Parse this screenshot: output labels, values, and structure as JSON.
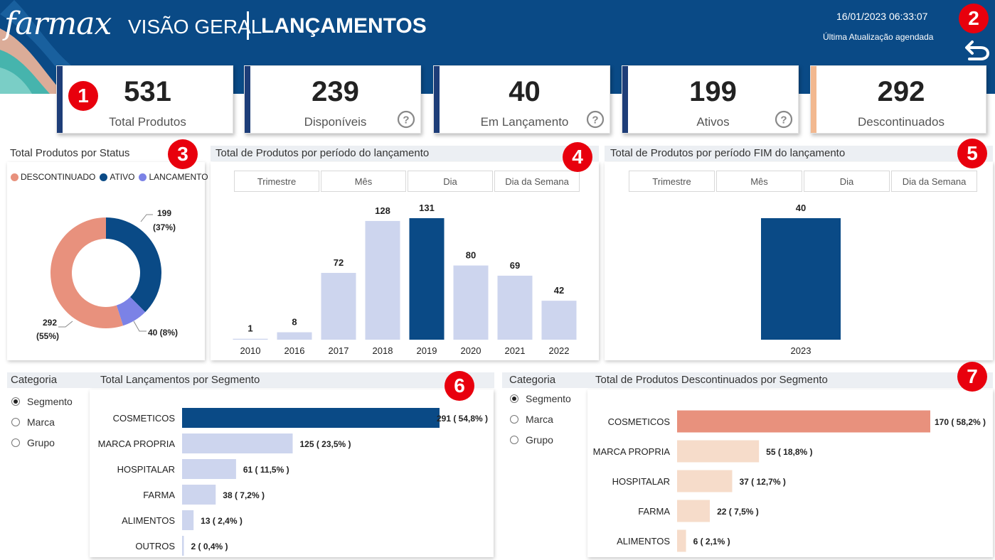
{
  "header": {
    "logo": "farmax",
    "title_part1": "VISÃO GERAL",
    "title_part2": "LANÇAMENTOS",
    "datetime": "16/01/2023 06:33:07",
    "update_note": "Última Atualização agendada"
  },
  "badges": [
    "1",
    "2",
    "3",
    "4",
    "5",
    "6",
    "7"
  ],
  "kpis": [
    {
      "value": "531",
      "label": "Total Produtos"
    },
    {
      "value": "239",
      "label": "Disponíveis"
    },
    {
      "value": "40",
      "label": "Em Lançamento"
    },
    {
      "value": "199",
      "label": "Ativos"
    },
    {
      "value": "292",
      "label": "Descontinuados"
    }
  ],
  "colors": {
    "primary": "#0a4a86",
    "descontinuado": "#e8917d",
    "ativo": "#0a4a86",
    "lancamento": "#7b82e6",
    "light_bar": "#cdd5ee",
    "peach_light": "#f6dcca",
    "salmon": "#e8917d"
  },
  "status_chart": {
    "title": "Total Produtos por Status",
    "legend": [
      "DESCONTINUADO",
      "ATIVO",
      "LANCAMENTO"
    ]
  },
  "period_tabs": [
    "Trimestre",
    "Mês",
    "Dia",
    "Dia da Semana"
  ],
  "filters": {
    "title": "Categoria",
    "options": [
      "Segmento",
      "Marca",
      "Grupo"
    ],
    "selected": "Segmento"
  },
  "chart_data": [
    {
      "type": "pie",
      "title": "Total Produtos por Status",
      "categories": [
        "DESCONTINUADO",
        "ATIVO",
        "LANCAMENTO"
      ],
      "values": [
        292,
        199,
        40
      ],
      "labels": [
        "292",
        "199",
        "40"
      ],
      "percent_labels": [
        "(55%)",
        "(37%)",
        "(8%)"
      ]
    },
    {
      "type": "bar",
      "title": "Total de Produtos por período do lançamento",
      "categories": [
        "2010",
        "2016",
        "2017",
        "2018",
        "2019",
        "2020",
        "2021",
        "2022"
      ],
      "values": [
        1,
        8,
        72,
        128,
        131,
        80,
        69,
        42
      ],
      "highlight": "2019",
      "ylim": [
        0,
        131
      ]
    },
    {
      "type": "bar",
      "title": "Total de Produtos por período FIM do lançamento",
      "categories": [
        "2023"
      ],
      "values": [
        40
      ],
      "ylim": [
        0,
        40
      ]
    },
    {
      "type": "bar",
      "orientation": "horizontal",
      "title": "Total Lançamentos por Segmento",
      "categories": [
        "COSMETICOS",
        "MARCA PROPRIA",
        "HOSPITALAR",
        "FARMA",
        "ALIMENTOS",
        "OUTROS"
      ],
      "values": [
        291,
        125,
        61,
        38,
        13,
        2
      ],
      "labels": [
        "291 ( 54,8% )",
        "125 ( 23,5% )",
        "61 ( 11,5% )",
        "38 ( 7,2% )",
        "13 ( 2,4% )",
        "2 ( 0,4% )"
      ]
    },
    {
      "type": "bar",
      "orientation": "horizontal",
      "title": "Total de Produtos Descontinuados por Segmento",
      "categories": [
        "COSMETICOS",
        "MARCA PROPRIA",
        "HOSPITALAR",
        "FARMA",
        "ALIMENTOS"
      ],
      "values": [
        170,
        55,
        37,
        22,
        6
      ],
      "labels": [
        "170 ( 58,2% )",
        "55 ( 18,8% )",
        "37 ( 12,7% )",
        "22 ( 7,5% )",
        "6 ( 2,1% )"
      ]
    }
  ]
}
